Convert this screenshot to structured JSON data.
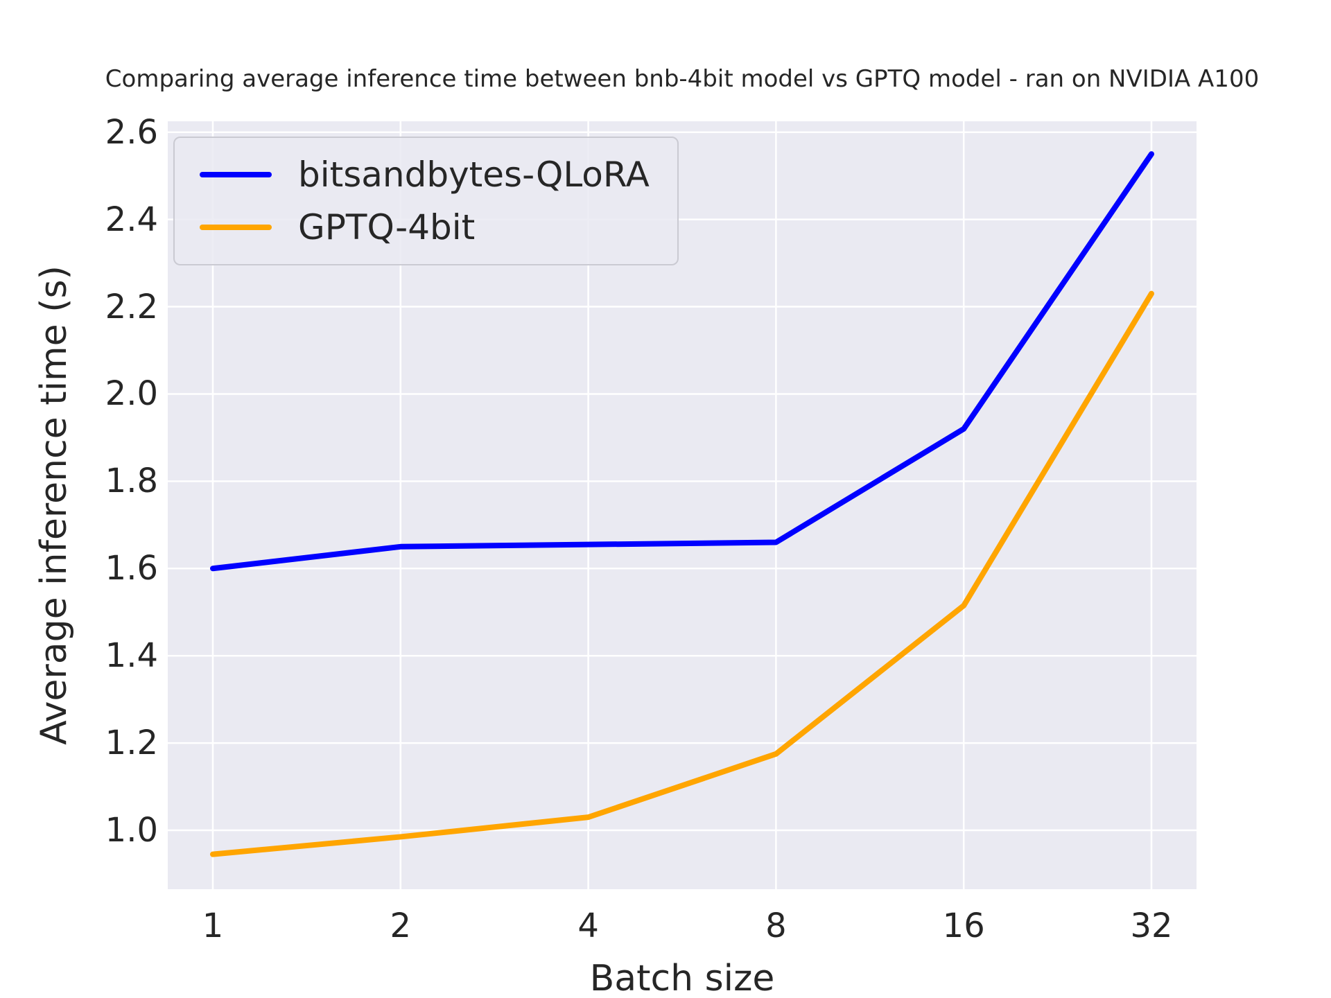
{
  "chart_data": {
    "type": "line",
    "title": "Comparing average inference time between bnb-4bit model vs GPTQ model - ran on NVIDIA A100",
    "xlabel": "Batch size",
    "ylabel": "Average inference time (s)",
    "categories": [
      1,
      2,
      4,
      8,
      16,
      32
    ],
    "xtick_labels": [
      "1",
      "2",
      "4",
      "8",
      "16",
      "32"
    ],
    "x_scale": "log2-categorical",
    "yticks": [
      1.0,
      1.2,
      1.4,
      1.6,
      1.8,
      2.0,
      2.2,
      2.4,
      2.6
    ],
    "ytick_labels": [
      "1.0",
      "1.2",
      "1.4",
      "1.6",
      "1.8",
      "2.0",
      "2.2",
      "2.4",
      "2.6"
    ],
    "ylim": [
      0.865,
      2.625
    ],
    "grid": true,
    "legend_position": "upper left",
    "series": [
      {
        "name": "bitsandbytes-QLoRA",
        "color": "#0000ff",
        "values": [
          1.6,
          1.65,
          1.655,
          1.66,
          1.92,
          2.55
        ]
      },
      {
        "name": "GPTQ-4bit",
        "color": "#ffa500",
        "values": [
          0.945,
          0.985,
          1.03,
          1.175,
          1.515,
          2.23
        ]
      }
    ],
    "colors": {
      "plot_background": "#eaeaf2",
      "grid_line": "#ffffff",
      "text": "#262626",
      "figure_background": "#ffffff"
    }
  }
}
